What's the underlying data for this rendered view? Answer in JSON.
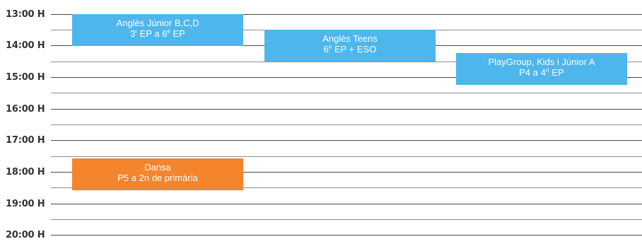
{
  "colors": {
    "blue": "#4DB6EC",
    "orange": "#F4852D",
    "line": "#4a4a4a"
  },
  "times": [
    "13:00 H",
    "14:00 H",
    "15:00 H",
    "16:00 H",
    "17:00 H",
    "18:00 H",
    "19:00 H",
    "20:00 H"
  ],
  "events": {
    "angles_junior": {
      "line1": "Anglès Júnior B,C,D",
      "a": "3",
      "a_sup": "r",
      "b": " EP a 6",
      "b_sup": "è",
      "c": " EP"
    },
    "angles_teens": {
      "line1": "Anglès Teens",
      "a": "6",
      "a_sup": "è",
      "b": " EP + ESO"
    },
    "playgroup": {
      "line1": "PlayGroup, Kids i Júnior A",
      "a": "P4 a 4",
      "a_sup": "rt",
      "b": " EP"
    },
    "dansa": {
      "line1": "Dansa",
      "line2": "P5 a 2n de primària"
    }
  }
}
